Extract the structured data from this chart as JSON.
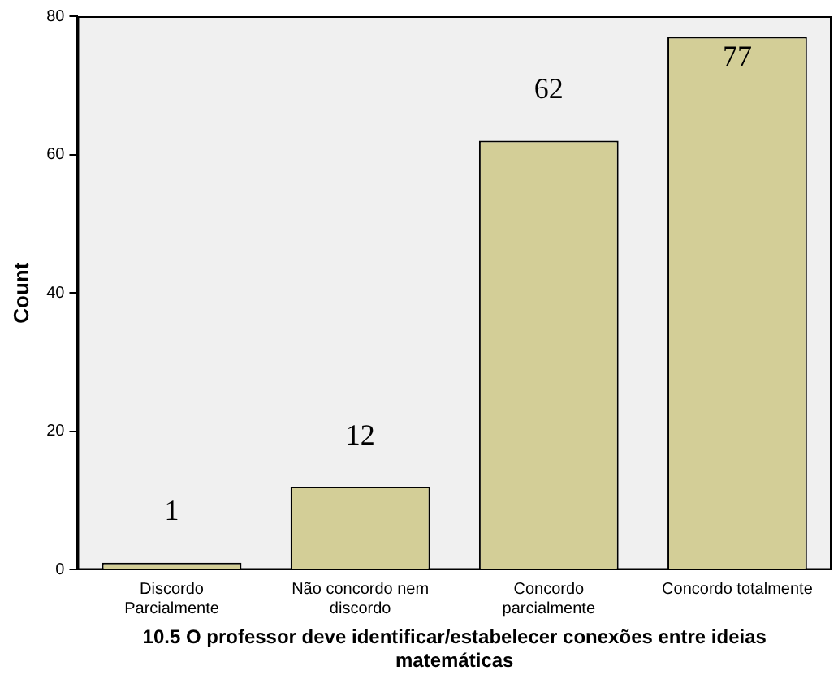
{
  "chart_data": {
    "type": "bar",
    "xlabel": "10.5 O professor deve identificar/estabelecer conexões entre ideias matemáticas",
    "ylabel": "Count",
    "categories": [
      "Discordo Parcialmente",
      "Não concordo nem discordo",
      "Concordo parcialmente",
      "Concordo totalmente"
    ],
    "values": [
      1,
      12,
      62,
      77
    ],
    "color": "#d3ce97",
    "ylim": [
      0,
      80
    ],
    "yticks": [
      0,
      20,
      40,
      60,
      80
    ],
    "grid": false,
    "data_labels": true,
    "legend": false
  }
}
